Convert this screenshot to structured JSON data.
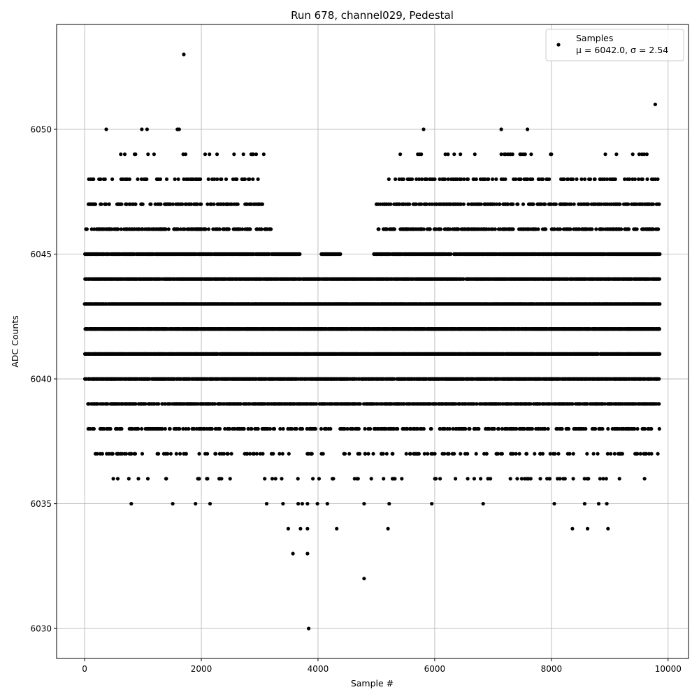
{
  "chart_data": {
    "type": "scatter",
    "title": "Run 678, channel029, Pedestal",
    "xlabel": "Sample #",
    "ylabel": "ADC Counts",
    "xlim": [
      -480,
      10350
    ],
    "ylim": [
      6028.8,
      6054.2
    ],
    "xticks": [
      0,
      2000,
      4000,
      6000,
      8000,
      10000
    ],
    "yticks": [
      6030,
      6035,
      6040,
      6045,
      6050
    ],
    "grid": true,
    "legend": {
      "placement": "top-right",
      "entries": [
        {
          "marker": "circle",
          "color": "#000000",
          "line1": "Samples",
          "line2": "μ = 6042.0, σ = 2.54"
        }
      ]
    },
    "series": [
      {
        "name": "Samples",
        "color": "#000000",
        "marker": "circle",
        "bands": [
          {
            "y": 6044,
            "ranges": [
              [
                0,
                9850
              ]
            ]
          },
          {
            "y": 6043,
            "ranges": [
              [
                0,
                9850
              ]
            ]
          },
          {
            "y": 6042,
            "ranges": [
              [
                0,
                9850
              ]
            ]
          },
          {
            "y": 6041,
            "ranges": [
              [
                0,
                9850
              ]
            ]
          },
          {
            "y": 6045,
            "ranges": [
              [
                0,
                3680
              ],
              [
                4050,
                4400
              ],
              [
                4950,
                9850
              ]
            ]
          },
          {
            "y": 6040,
            "ranges": [
              [
                0,
                9850
              ]
            ]
          },
          {
            "y": 6039,
            "ranges": [
              [
                50,
                9850
              ]
            ]
          },
          {
            "y": 6046,
            "ranges": [
              [
                0,
                3200
              ],
              [
                5000,
                9850
              ]
            ]
          },
          {
            "y": 6047,
            "ranges": [
              [
                0,
                3100
              ],
              [
                5000,
                9850
              ]
            ]
          },
          {
            "y": 6038,
            "ranges": [
              [
                50,
                9850
              ]
            ]
          },
          {
            "y": 6048,
            "ranges": [
              [
                50,
                3050
              ],
              [
                5200,
                9850
              ]
            ]
          },
          {
            "y": 6037,
            "ranges": [
              [
                150,
                9850
              ]
            ]
          },
          {
            "y": 6036,
            "ranges": [
              [
                450,
                9850
              ]
            ]
          },
          {
            "y": 6049,
            "ranges": [
              [
                600,
                3100
              ],
              [
                5400,
                9650
              ]
            ]
          }
        ],
        "points": [
          [
            1700,
            6053
          ],
          [
            9780,
            6051
          ],
          [
            370,
            6050
          ],
          [
            980,
            6050
          ],
          [
            1070,
            6050
          ],
          [
            1590,
            6050
          ],
          [
            1620,
            6050
          ],
          [
            5810,
            6050
          ],
          [
            7140,
            6050
          ],
          [
            7590,
            6050
          ],
          [
            620,
            6049
          ],
          [
            1190,
            6049
          ],
          [
            1690,
            6049
          ],
          [
            1730,
            6049
          ],
          [
            2270,
            6049
          ],
          [
            3070,
            6049
          ],
          [
            5410,
            6049
          ],
          [
            5710,
            6049
          ],
          [
            5770,
            6049
          ],
          [
            7140,
            6049
          ],
          [
            7300,
            6049
          ],
          [
            7480,
            6049
          ],
          [
            7550,
            6049
          ],
          [
            9590,
            6049
          ],
          [
            800,
            6035
          ],
          [
            1510,
            6035
          ],
          [
            1900,
            6035
          ],
          [
            2150,
            6035
          ],
          [
            3120,
            6035
          ],
          [
            3400,
            6035
          ],
          [
            3660,
            6035
          ],
          [
            3730,
            6035
          ],
          [
            3820,
            6035
          ],
          [
            3990,
            6035
          ],
          [
            4160,
            6035
          ],
          [
            4790,
            6035
          ],
          [
            5220,
            6035
          ],
          [
            5950,
            6035
          ],
          [
            6830,
            6035
          ],
          [
            8050,
            6035
          ],
          [
            8570,
            6035
          ],
          [
            8810,
            6035
          ],
          [
            8950,
            6035
          ],
          [
            3490,
            6034
          ],
          [
            3700,
            6034
          ],
          [
            3820,
            6034
          ],
          [
            4320,
            6034
          ],
          [
            5200,
            6034
          ],
          [
            8360,
            6034
          ],
          [
            8620,
            6034
          ],
          [
            8970,
            6034
          ],
          [
            3570,
            6033
          ],
          [
            3820,
            6033
          ],
          [
            4790,
            6032
          ],
          [
            3840,
            6030
          ]
        ]
      }
    ]
  }
}
